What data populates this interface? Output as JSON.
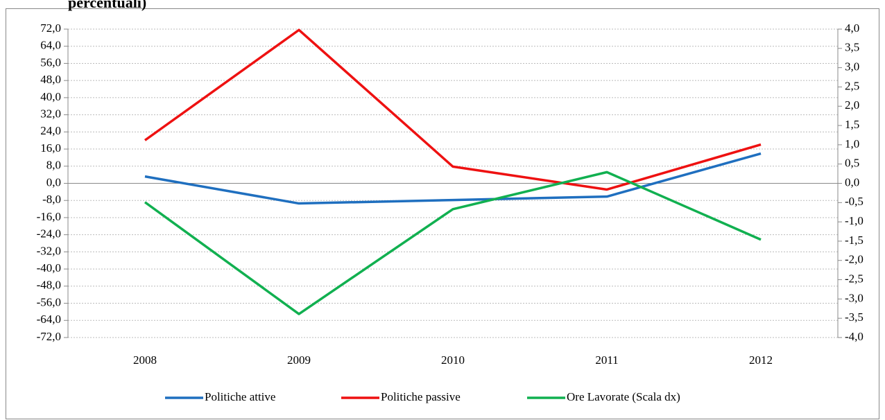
{
  "chart_data": {
    "type": "line",
    "title": "percentuali)",
    "categories": [
      "2008",
      "2009",
      "2010",
      "2011",
      "2012"
    ],
    "series": [
      {
        "name": "Politiche attive",
        "color": "#1f6fbf",
        "values": [
          3.2,
          -9.4,
          -7.8,
          -6.2,
          13.9
        ]
      },
      {
        "name": "Politiche passive",
        "color": "#ee1111",
        "values": [
          20.1,
          71.6,
          7.8,
          -2.9,
          18.1
        ]
      },
      {
        "name": "Ore Lavorate  (Scala dx)",
        "color": "#11b050",
        "axis": "y2",
        "values": [
          -0.49,
          -3.39,
          -0.67,
          0.29,
          -1.46
        ]
      }
    ],
    "ylim": [
      -72,
      72
    ],
    "yticks": [
      {
        "value": 72,
        "label": "72,0"
      },
      {
        "value": 64,
        "label": "64,0"
      },
      {
        "value": 56,
        "label": "56,0"
      },
      {
        "value": 48,
        "label": "48,0"
      },
      {
        "value": 40,
        "label": "40,0"
      },
      {
        "value": 32,
        "label": "32,0"
      },
      {
        "value": 24,
        "label": "24,0"
      },
      {
        "value": 16,
        "label": "16,0"
      },
      {
        "value": 8,
        "label": "8,0"
      },
      {
        "value": 0,
        "label": "0,0"
      },
      {
        "value": -8,
        "label": "-8,0"
      },
      {
        "value": -16,
        "label": "-16,0"
      },
      {
        "value": -24,
        "label": "-24,0"
      },
      {
        "value": -32,
        "label": "-32,0"
      },
      {
        "value": -40,
        "label": "-40,0"
      },
      {
        "value": -48,
        "label": "-48,0"
      },
      {
        "value": -56,
        "label": "-56,0"
      },
      {
        "value": -64,
        "label": "-64,0"
      },
      {
        "value": -72,
        "label": "-72,0"
      }
    ],
    "y2lim": [
      -4,
      4
    ],
    "y2ticks": [
      {
        "value": 4,
        "label": "4,0"
      },
      {
        "value": 3.5,
        "label": "3,5"
      },
      {
        "value": 3,
        "label": "3,0"
      },
      {
        "value": 2.5,
        "label": "2,5"
      },
      {
        "value": 2,
        "label": "2,0"
      },
      {
        "value": 1.5,
        "label": "1,5"
      },
      {
        "value": 1,
        "label": "1,0"
      },
      {
        "value": 0.5,
        "label": "0,5"
      },
      {
        "value": 0,
        "label": "0,0"
      },
      {
        "value": -0.5,
        "label": "-0,5"
      },
      {
        "value": -1,
        "label": "-1,0"
      },
      {
        "value": -1.5,
        "label": "-1,5"
      },
      {
        "value": -2,
        "label": "-2,0"
      },
      {
        "value": -2.5,
        "label": "-2,5"
      },
      {
        "value": -3,
        "label": "-3,0"
      },
      {
        "value": -3.5,
        "label": "-3,5"
      },
      {
        "value": -4,
        "label": "-4,0"
      }
    ],
    "grid": true,
    "legend": "bottom"
  }
}
